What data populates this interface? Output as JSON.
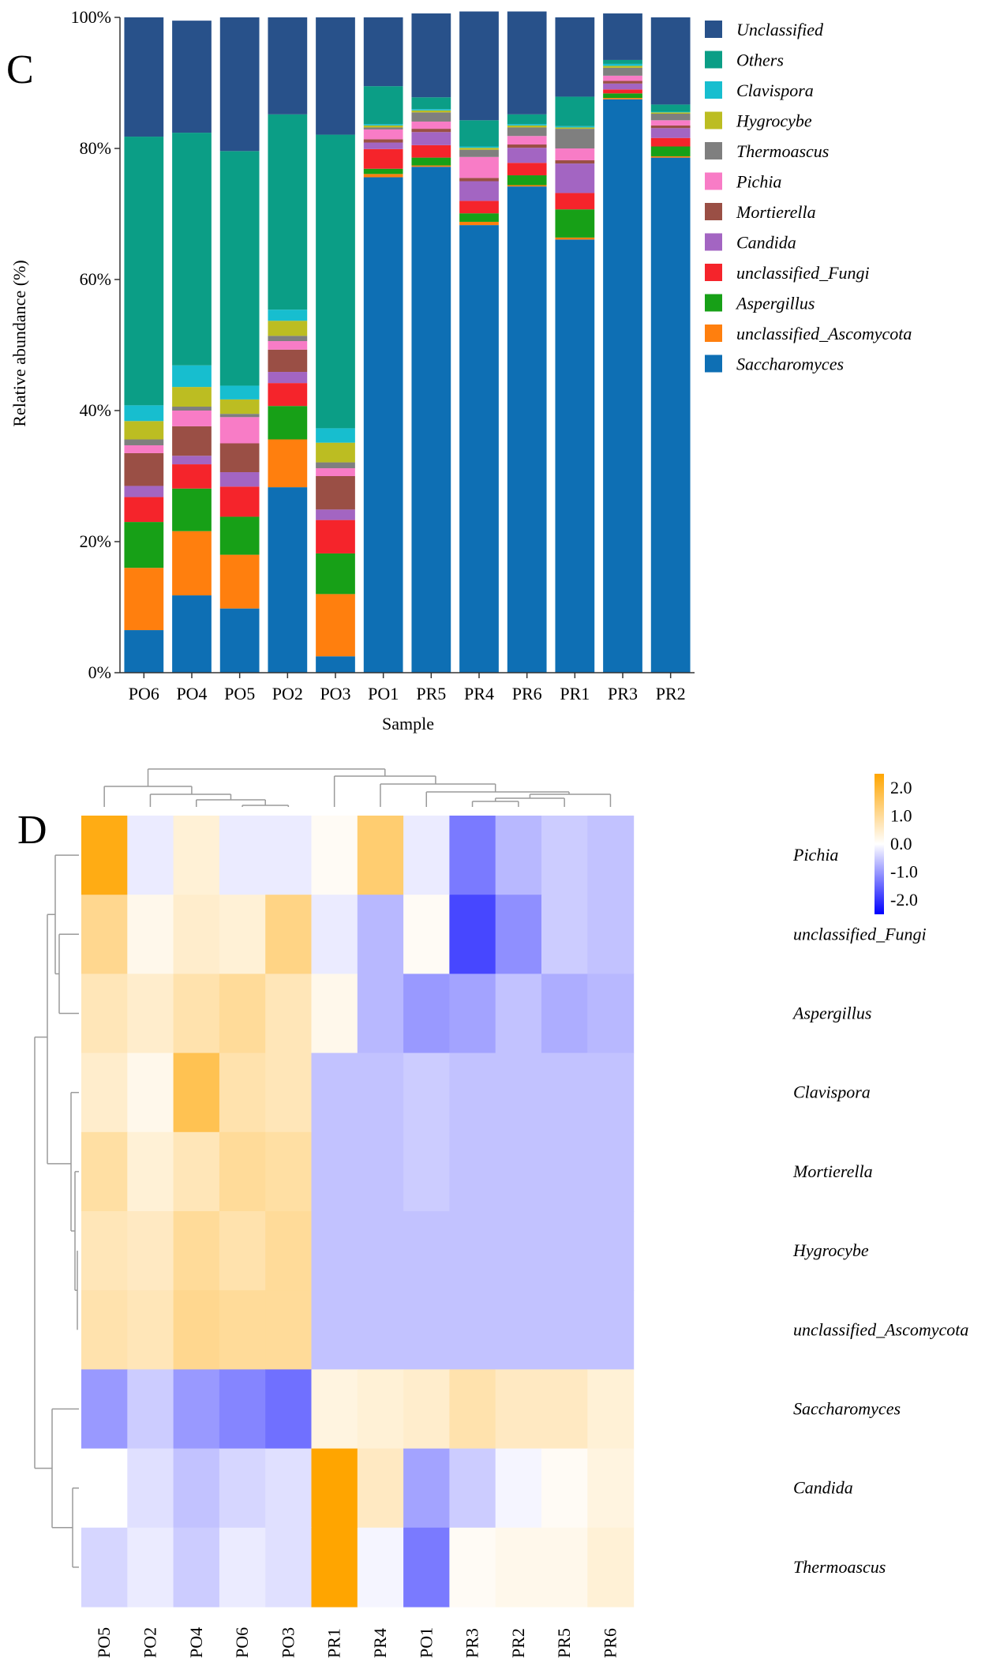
{
  "chart_data": [
    {
      "type": "bar",
      "stacked": true,
      "panel_label": "C",
      "title": "",
      "xlabel": "Sample",
      "ylabel": "Relative abundance (%)",
      "ylim": [
        0,
        100
      ],
      "yticks": [
        0,
        20,
        40,
        60,
        80,
        100
      ],
      "ytick_labels": [
        "0%",
        "20%",
        "40%",
        "60%",
        "80%",
        "100%"
      ],
      "legend_position": "right",
      "categories": [
        "PO6",
        "PO4",
        "PO5",
        "PO2",
        "PO3",
        "PO1",
        "PR5",
        "PR4",
        "PR6",
        "PR1",
        "PR3",
        "PR2"
      ],
      "series": [
        {
          "name": "Saccharomyces",
          "color": "#0e6fb4",
          "values": [
            6.5,
            11.8,
            9.8,
            28.3,
            2.5,
            75.6,
            77.2,
            68.3,
            74.2,
            66.1,
            87.5,
            78.6
          ]
        },
        {
          "name": "unclassified_Ascomycota",
          "color": "#ff7f0e",
          "values": [
            9.5,
            9.8,
            8.2,
            7.3,
            9.5,
            0.5,
            0.2,
            0.5,
            0.2,
            0.3,
            0.2,
            0.2
          ]
        },
        {
          "name": "Aspergillus",
          "color": "#17a017",
          "values": [
            7.0,
            6.5,
            5.8,
            5.1,
            6.2,
            0.8,
            1.2,
            1.3,
            1.5,
            4.3,
            0.7,
            1.5
          ]
        },
        {
          "name": "unclassified_Fungi",
          "color": "#f5242b",
          "values": [
            3.8,
            3.7,
            4.6,
            3.5,
            5.1,
            3.0,
            1.9,
            1.9,
            1.9,
            2.5,
            0.6,
            1.3
          ]
        },
        {
          "name": "Candida",
          "color": "#a365c2",
          "values": [
            1.7,
            1.3,
            2.2,
            1.7,
            1.6,
            1.0,
            2.0,
            3.0,
            2.3,
            4.5,
            0.9,
            1.5
          ]
        },
        {
          "name": "Mortierella",
          "color": "#9a4f45",
          "values": [
            5.0,
            4.5,
            4.4,
            3.4,
            5.1,
            0.5,
            0.5,
            0.5,
            0.5,
            0.5,
            0.4,
            0.4
          ]
        },
        {
          "name": "Pichia",
          "color": "#f87cc6",
          "values": [
            1.2,
            2.4,
            4.0,
            1.3,
            1.2,
            1.5,
            1.1,
            3.2,
            1.3,
            1.8,
            0.8,
            0.8
          ]
        },
        {
          "name": "Thermoascus",
          "color": "#7f7f7f",
          "values": [
            0.9,
            0.6,
            0.5,
            0.8,
            0.9,
            0.3,
            1.4,
            1.1,
            1.3,
            3.0,
            1.2,
            1.0
          ]
        },
        {
          "name": "Hygrocybe",
          "color": "#bcbd22",
          "values": [
            2.8,
            3.0,
            2.2,
            2.3,
            3.0,
            0.3,
            0.3,
            0.3,
            0.3,
            0.2,
            0.3,
            0.2
          ]
        },
        {
          "name": "Clavispora",
          "color": "#17becf",
          "values": [
            2.4,
            3.3,
            2.1,
            1.7,
            2.2,
            0.2,
            0.2,
            0.2,
            0.2,
            0.2,
            0.3,
            0.1
          ]
        },
        {
          "name": "Others",
          "color": "#0b9e86",
          "values": [
            41.0,
            35.5,
            35.8,
            29.8,
            44.8,
            5.8,
            1.8,
            4.0,
            1.5,
            4.5,
            0.6,
            1.1
          ]
        },
        {
          "name": "Unclassified",
          "color": "#28518a",
          "values": [
            18.2,
            17.1,
            20.4,
            14.8,
            17.9,
            10.5,
            12.8,
            16.6,
            15.7,
            12.1,
            7.1,
            13.3
          ]
        }
      ]
    },
    {
      "type": "heatmap",
      "panel_label": "D",
      "columns": [
        "PO5",
        "PO2",
        "PO4",
        "PO6",
        "PO3",
        "PR1",
        "PR4",
        "PO1",
        "PR3",
        "PR2",
        "PR5",
        "PR6"
      ],
      "rows": [
        "Pichia",
        "unclassified_Fungi",
        "Aspergillus",
        "Clavispora",
        "Mortierella",
        "Hygrocybe",
        "unclassified_Ascomycota",
        "Saccharomyces",
        "Candida",
        "Thermoascus"
      ],
      "values": [
        [
          2.3,
          -0.2,
          0.4,
          -0.2,
          -0.2,
          0.1,
          1.4,
          -0.2,
          -1.3,
          -0.7,
          -0.5,
          -0.6
        ],
        [
          1.1,
          0.2,
          0.5,
          0.4,
          1.2,
          -0.2,
          -0.7,
          0.1,
          -1.8,
          -1.1,
          -0.5,
          -0.6
        ],
        [
          0.7,
          0.5,
          0.8,
          1.0,
          0.7,
          0.2,
          -0.7,
          -1.0,
          -0.9,
          -0.6,
          -0.8,
          -0.7
        ],
        [
          0.5,
          0.2,
          1.7,
          0.8,
          0.7,
          -0.6,
          -0.6,
          -0.5,
          -0.6,
          -0.6,
          -0.6,
          -0.6
        ],
        [
          0.9,
          0.4,
          0.7,
          1.0,
          0.9,
          -0.6,
          -0.6,
          -0.5,
          -0.6,
          -0.6,
          -0.6,
          -0.6
        ],
        [
          0.7,
          0.6,
          1.0,
          0.8,
          1.0,
          -0.6,
          -0.6,
          -0.6,
          -0.6,
          -0.6,
          -0.6,
          -0.6
        ],
        [
          0.8,
          0.7,
          1.1,
          1.0,
          1.0,
          -0.6,
          -0.6,
          -0.6,
          -0.6,
          -0.6,
          -0.6,
          -0.6
        ],
        [
          -1.0,
          -0.5,
          -1.0,
          -1.2,
          -1.4,
          0.3,
          0.4,
          0.5,
          0.8,
          0.6,
          0.6,
          0.4
        ],
        [
          0.0,
          -0.3,
          -0.6,
          -0.4,
          -0.3,
          2.6,
          0.6,
          -0.9,
          -0.5,
          -0.1,
          0.1,
          0.3
        ],
        [
          -0.4,
          -0.2,
          -0.5,
          -0.2,
          -0.3,
          2.6,
          -0.1,
          -1.3,
          0.1,
          0.2,
          0.2,
          0.4
        ]
      ],
      "colorscale": {
        "min": -2.5,
        "mid": 0,
        "max": 2.5,
        "low_color": "#0000ff",
        "mid_color": "#ffffff",
        "high_color": "#ffa500"
      },
      "scale_ticks": [
        2.0,
        1.0,
        0.0,
        -1.0,
        -2.0
      ],
      "scale_tick_labels": [
        "2.0",
        "1.0",
        "0.0",
        "-1.0",
        "-2.0"
      ],
      "column_dendrogram": true,
      "row_dendrogram": true
    }
  ]
}
